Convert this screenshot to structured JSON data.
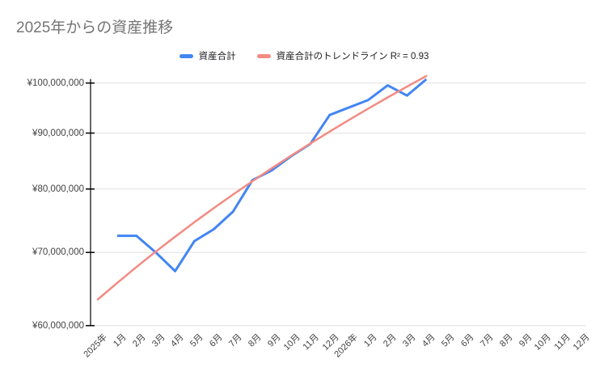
{
  "title": "2025年からの資産推移",
  "legend": {
    "series_label": "資産合計",
    "trend_label": "資産合計のトレンドライン R² = 0.93"
  },
  "colors": {
    "series": "#4285f4",
    "trendline": "#f28b82",
    "gridline": "#e0e0e0",
    "axis": "#000000",
    "title_text": "#757575",
    "axis_text": "#424242"
  },
  "chart_data": {
    "type": "line",
    "title": "2025年からの資産推移",
    "y_axis": {
      "scale": "log",
      "min": 60000000,
      "max": 100000000,
      "tick_values": [
        100000000,
        90000000,
        80000000,
        70000000,
        60000000
      ],
      "tick_labels": [
        "¥100,000,000",
        "¥90,000,000",
        "¥80,000,000",
        "¥70,000,000",
        "¥60,000,000"
      ],
      "grid": true
    },
    "categories": [
      "2025年",
      "1月",
      "2月",
      "3月",
      "4月",
      "5月",
      "6月",
      "7月",
      "8月",
      "9月",
      "10月",
      "11月",
      "12月",
      "2026年",
      "1月",
      "2月",
      "3月",
      "4月",
      "5月",
      "6月",
      "7月",
      "8月",
      "9月",
      "10月",
      "11月",
      "12月"
    ],
    "series": [
      {
        "name": "資産合計",
        "color": "#4285f4",
        "values": [
          null,
          72500000,
          72500000,
          70000000,
          67300000,
          71700000,
          73500000,
          76300000,
          81500000,
          83200000,
          85700000,
          88000000,
          93500000,
          null,
          96500000,
          99500000,
          97400000,
          100800000,
          null,
          null,
          null,
          null,
          null,
          null,
          null,
          null
        ]
      }
    ],
    "trendline": {
      "name": "資産合計のトレンドライン",
      "for_series": "資産合計",
      "r2": 0.93,
      "color": "#f28b82",
      "start_index": 0,
      "end_index": 17,
      "start_value": 63400000,
      "end_value": 101500000
    },
    "legend_position": "top"
  }
}
